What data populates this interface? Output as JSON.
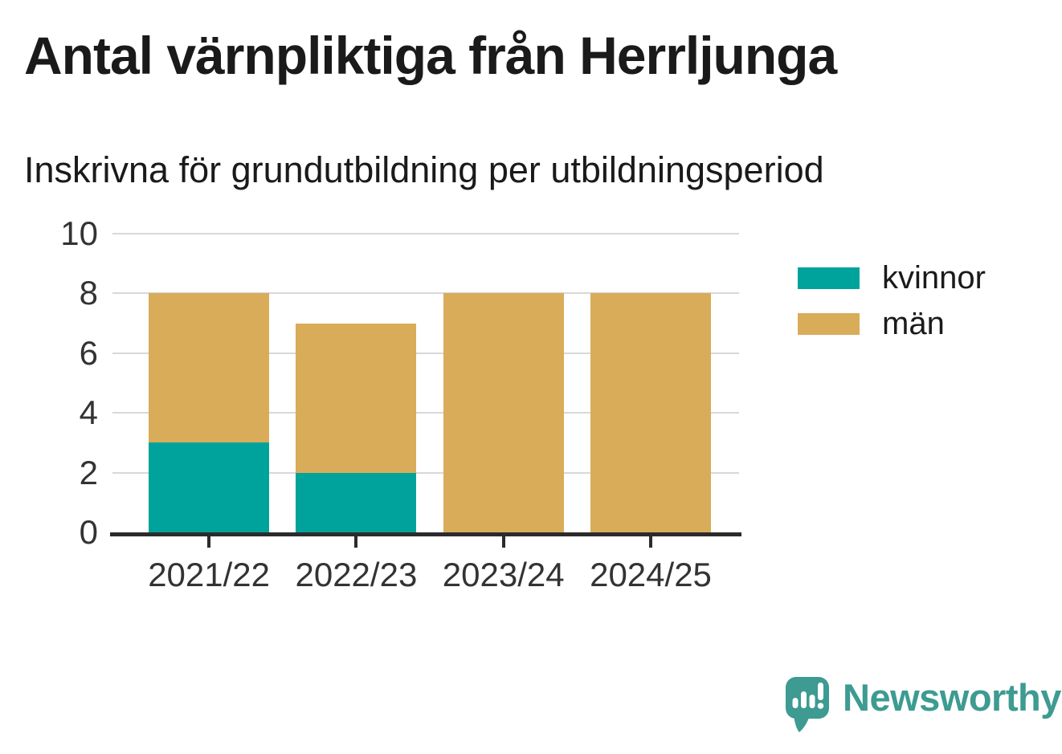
{
  "header": {
    "title": "Antal värnpliktiga från Herrljunga",
    "subtitle": "Inskrivna för grundutbildning per utbildningsperiod"
  },
  "chart_data": {
    "type": "bar",
    "stacked": true,
    "title": "Antal värnpliktiga från Herrljunga",
    "subtitle": "Inskrivna för grundutbildning per utbildningsperiod",
    "categories": [
      "2021/22",
      "2022/23",
      "2023/24",
      "2024/25"
    ],
    "series": [
      {
        "name": "kvinnor",
        "color": "#00a39b",
        "values": [
          3,
          2,
          0,
          0
        ]
      },
      {
        "name": "män",
        "color": "#d9ac5a",
        "values": [
          5,
          5,
          8,
          8
        ]
      }
    ],
    "stack_totals": [
      8,
      7,
      8,
      8
    ],
    "xlabel": "",
    "ylabel": "",
    "ylim": [
      0,
      10
    ],
    "yticks": [
      0,
      2,
      4,
      6,
      8,
      10
    ],
    "grid": true,
    "legend_position": "right"
  },
  "legend": {
    "items": [
      {
        "label": "kvinnor",
        "color": "#00a39b"
      },
      {
        "label": "män",
        "color": "#d9ac5a"
      }
    ]
  },
  "branding": {
    "logo_text": "Newsworthy",
    "logo_color": "#3d9b91",
    "logo_icon": "newsworthy-speech-bubble-bar-chart-icon"
  },
  "colors": {
    "background": "#ffffff",
    "title_text": "#1a1a1a",
    "axis_text": "#333333",
    "gridline": "#d8d8d8",
    "axis_line": "#2b2b2b",
    "series_kvinnor": "#00a39b",
    "series_man": "#d9ac5a"
  }
}
